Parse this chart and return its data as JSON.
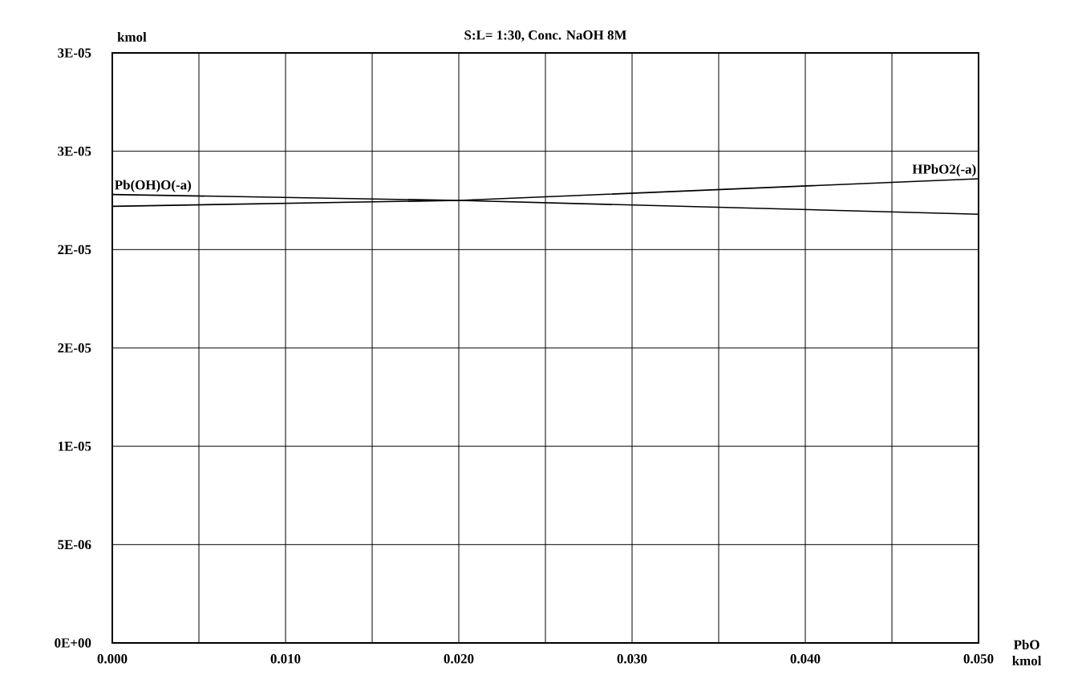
{
  "chart_data": {
    "type": "line",
    "title": "S:L= 1:30, Conc. NaOH 8M",
    "xlabel": "PbO kmol",
    "ylabel": "kmol",
    "x": [
      0,
      0.02,
      0.05
    ],
    "series": [
      {
        "name": "Pb(OH)O(-a)",
        "color": "#000000",
        "values": [
          2.28e-05,
          2.25e-05,
          2.18e-05
        ]
      },
      {
        "name": "HPbO2(-a)",
        "color": "#000000",
        "values": [
          2.22e-05,
          2.25e-05,
          2.36e-05
        ]
      }
    ],
    "xlim": [
      0,
      0.05
    ],
    "xticks": [
      {
        "value": 0,
        "label": "0.000"
      },
      {
        "value": 0.005,
        "label": null
      },
      {
        "value": 0.01,
        "label": "0.010"
      },
      {
        "value": 0.015,
        "label": null
      },
      {
        "value": 0.02,
        "label": "0.020"
      },
      {
        "value": 0.025,
        "label": null
      },
      {
        "value": 0.03,
        "label": "0.030"
      },
      {
        "value": 0.035,
        "label": null
      },
      {
        "value": 0.04,
        "label": "0.040"
      },
      {
        "value": 0.045,
        "label": null
      },
      {
        "value": 0.05,
        "label": "0.050"
      }
    ],
    "ylim": [
      0,
      3e-05
    ],
    "yticks": [
      {
        "value": 0,
        "label": "0E+00"
      },
      {
        "value": 5e-06,
        "label": "5E-06"
      },
      {
        "value": 1e-05,
        "label": "1E-05"
      },
      {
        "value": 1.5e-05,
        "label": "2E-05"
      },
      {
        "value": 2e-05,
        "label": "2E-05"
      },
      {
        "value": 2.5e-05,
        "label": "3E-05"
      },
      {
        "value": 3e-05,
        "label": "3E-05"
      }
    ],
    "grid": true,
    "legend": false,
    "marker": "none",
    "line_style": "solid"
  }
}
